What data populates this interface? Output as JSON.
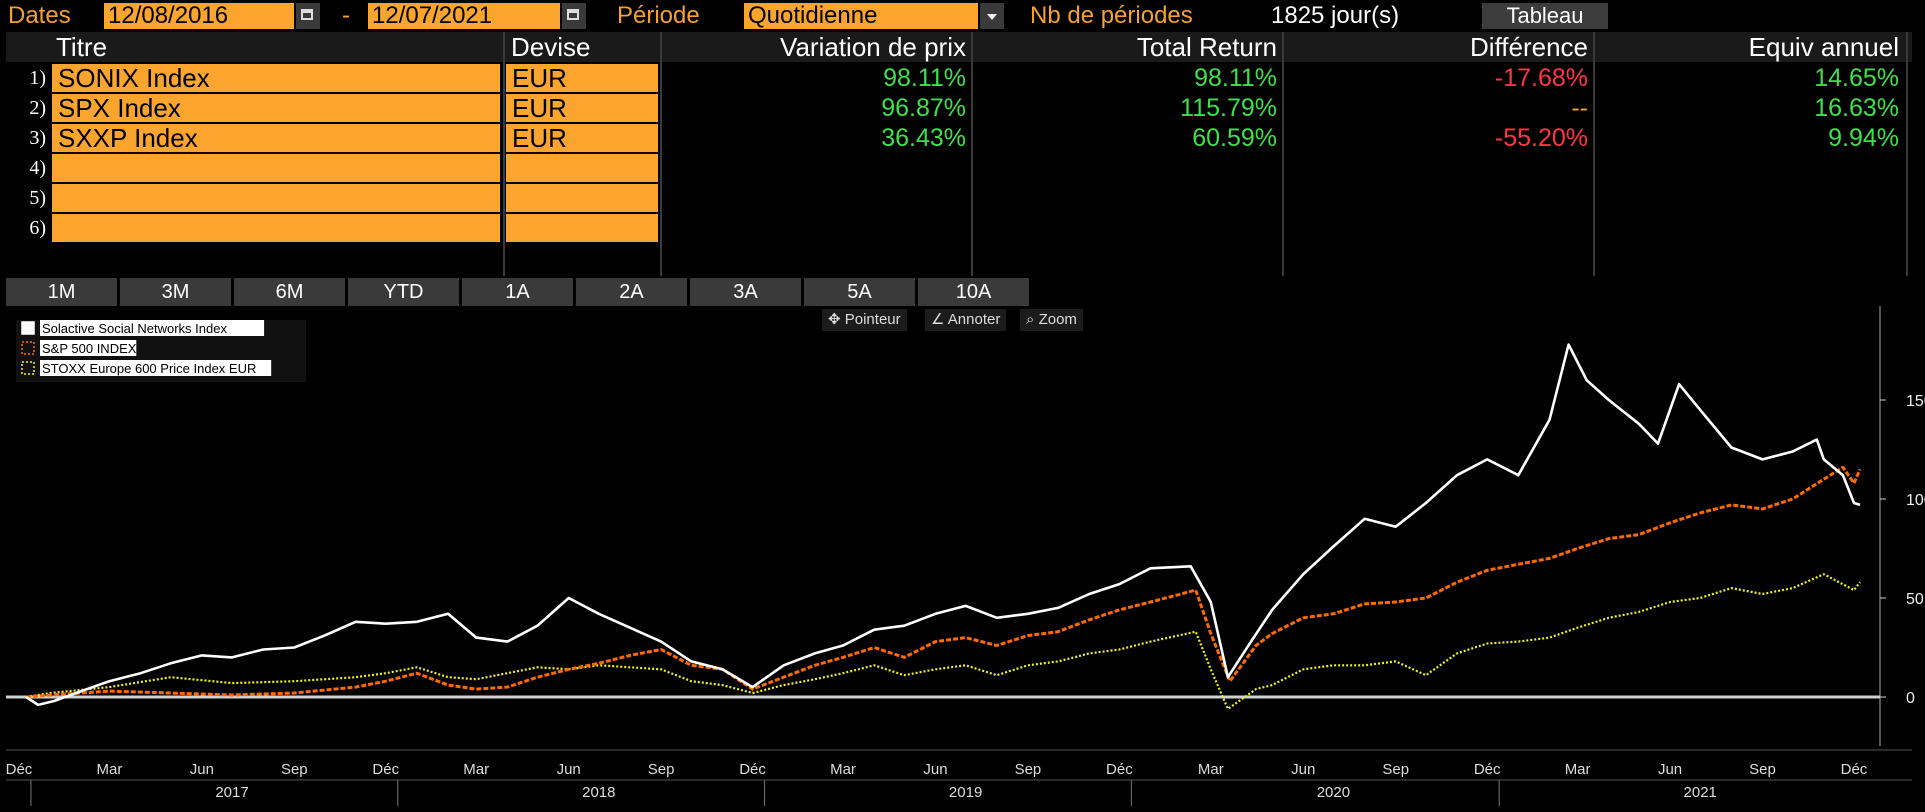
{
  "toolbar": {
    "dates_label": "Dates",
    "start_date": "12/08/2016",
    "dash": "-",
    "end_date": "12/07/2021",
    "period_label": "Période",
    "period_value": "Quotidienne",
    "nb_label": "Nb de périodes",
    "nb_value": "1825 jour(s)",
    "table_button": "Tableau"
  },
  "table": {
    "headers": {
      "titre": "Titre",
      "devise": "Devise",
      "variation": "Variation de prix",
      "total_return": "Total Return",
      "difference": "Différence",
      "equiv": "Equiv annuel"
    },
    "rows": [
      {
        "num": "1)",
        "titre": "SONIX Index",
        "devise": "EUR",
        "variation": "98.11%",
        "total_return": "98.11%",
        "difference": "-17.68%",
        "equiv": "14.65%"
      },
      {
        "num": "2)",
        "titre": "SPX Index",
        "devise": "EUR",
        "variation": "96.87%",
        "total_return": "115.79%",
        "difference": "--",
        "equiv": "16.63%"
      },
      {
        "num": "3)",
        "titre": "SXXP Index",
        "devise": "EUR",
        "variation": "36.43%",
        "total_return": "60.59%",
        "difference": "-55.20%",
        "equiv": "9.94%"
      },
      {
        "num": "4)",
        "titre": "",
        "devise": "",
        "variation": "",
        "total_return": "",
        "difference": "",
        "equiv": ""
      },
      {
        "num": "5)",
        "titre": "",
        "devise": "",
        "variation": "",
        "total_return": "",
        "difference": "",
        "equiv": ""
      },
      {
        "num": "6)",
        "titre": "",
        "devise": "",
        "variation": "",
        "total_return": "",
        "difference": "",
        "equiv": ""
      }
    ]
  },
  "period_buttons": [
    "1M",
    "3M",
    "6M",
    "YTD",
    "1A",
    "2A",
    "3A",
    "5A",
    "10A"
  ],
  "chart_tools": {
    "pointer": "Pointeur",
    "annotate": "Annoter",
    "zoom": "Zoom"
  },
  "colors": {
    "accent": "#fba52e",
    "positive": "#3ee04b",
    "negative": "#ff3540",
    "series_white": "#ffffff",
    "series_orange": "#ff6a00",
    "series_yellow": "#f2f21a"
  },
  "chart_data": {
    "type": "line",
    "title": "",
    "xlabel": "",
    "ylabel": "",
    "ylim": [
      -15,
      185
    ],
    "yticks": [
      0,
      50,
      100,
      150
    ],
    "grid": false,
    "legend_position": "top-left",
    "x_month_labels": [
      "Déc",
      "Mar",
      "Jun",
      "Sep",
      "Déc",
      "Mar",
      "Jun",
      "Sep",
      "Déc",
      "Mar",
      "Jun",
      "Sep",
      "Déc",
      "Mar",
      "Jun",
      "Sep",
      "Déc",
      "Mar",
      "Jun",
      "Sep",
      "Déc"
    ],
    "x_month_dates": [
      "2016-12-01",
      "2017-03-01",
      "2017-06-01",
      "2017-09-01",
      "2017-12-01",
      "2018-03-01",
      "2018-06-01",
      "2018-09-01",
      "2018-12-01",
      "2019-03-01",
      "2019-06-01",
      "2019-09-01",
      "2019-12-01",
      "2020-03-01",
      "2020-06-01",
      "2020-09-01",
      "2020-12-01",
      "2021-03-01",
      "2021-06-01",
      "2021-09-01",
      "2021-12-01"
    ],
    "x_year_labels": [
      "2017",
      "2018",
      "2019",
      "2020",
      "2021"
    ],
    "x_year_dates": [
      "2017-07-01",
      "2018-07-01",
      "2019-07-01",
      "2020-07-01",
      "2021-07-01"
    ],
    "x_range": [
      "2016-12-08",
      "2021-12-07"
    ],
    "series": [
      {
        "name": "Solactive Social Networks Index",
        "style": "solid",
        "points": [
          [
            "2016-12-08",
            0
          ],
          [
            "2016-12-20",
            -4
          ],
          [
            "2017-01-05",
            -2
          ],
          [
            "2017-02-01",
            3
          ],
          [
            "2017-03-01",
            8
          ],
          [
            "2017-04-01",
            12
          ],
          [
            "2017-05-01",
            17
          ],
          [
            "2017-06-01",
            21
          ],
          [
            "2017-07-01",
            20
          ],
          [
            "2017-08-01",
            24
          ],
          [
            "2017-09-01",
            25
          ],
          [
            "2017-10-01",
            31
          ],
          [
            "2017-11-01",
            38
          ],
          [
            "2017-12-01",
            37
          ],
          [
            "2018-01-01",
            38
          ],
          [
            "2018-02-01",
            42
          ],
          [
            "2018-03-01",
            30
          ],
          [
            "2018-04-01",
            28
          ],
          [
            "2018-05-01",
            36
          ],
          [
            "2018-06-01",
            50
          ],
          [
            "2018-07-01",
            42
          ],
          [
            "2018-08-01",
            35
          ],
          [
            "2018-09-01",
            28
          ],
          [
            "2018-10-01",
            18
          ],
          [
            "2018-11-01",
            14
          ],
          [
            "2018-12-01",
            5
          ],
          [
            "2019-01-01",
            16
          ],
          [
            "2019-02-01",
            22
          ],
          [
            "2019-03-01",
            26
          ],
          [
            "2019-04-01",
            34
          ],
          [
            "2019-05-01",
            36
          ],
          [
            "2019-06-01",
            42
          ],
          [
            "2019-07-01",
            46
          ],
          [
            "2019-08-01",
            40
          ],
          [
            "2019-09-01",
            42
          ],
          [
            "2019-10-01",
            45
          ],
          [
            "2019-11-01",
            52
          ],
          [
            "2019-12-01",
            57
          ],
          [
            "2020-01-01",
            65
          ],
          [
            "2020-02-10",
            66
          ],
          [
            "2020-03-01",
            48
          ],
          [
            "2020-03-18",
            10
          ],
          [
            "2020-04-10",
            28
          ],
          [
            "2020-05-01",
            44
          ],
          [
            "2020-06-01",
            62
          ],
          [
            "2020-07-01",
            76
          ],
          [
            "2020-08-01",
            90
          ],
          [
            "2020-09-01",
            86
          ],
          [
            "2020-10-01",
            98
          ],
          [
            "2020-11-01",
            112
          ],
          [
            "2020-12-01",
            120
          ],
          [
            "2021-01-01",
            112
          ],
          [
            "2021-02-01",
            140
          ],
          [
            "2021-02-20",
            178
          ],
          [
            "2021-03-10",
            160
          ],
          [
            "2021-04-01",
            150
          ],
          [
            "2021-05-01",
            138
          ],
          [
            "2021-05-20",
            128
          ],
          [
            "2021-06-10",
            158
          ],
          [
            "2021-07-01",
            145
          ],
          [
            "2021-08-01",
            126
          ],
          [
            "2021-09-01",
            120
          ],
          [
            "2021-10-01",
            124
          ],
          [
            "2021-10-25",
            130
          ],
          [
            "2021-11-01",
            120
          ],
          [
            "2021-11-20",
            112
          ],
          [
            "2021-12-01",
            98
          ],
          [
            "2021-12-07",
            97
          ]
        ]
      },
      {
        "name": "S&P 500 INDEX",
        "style": "dashed",
        "points": [
          [
            "2016-12-08",
            0
          ],
          [
            "2017-01-01",
            1
          ],
          [
            "2017-03-01",
            3
          ],
          [
            "2017-05-01",
            2
          ],
          [
            "2017-07-01",
            1
          ],
          [
            "2017-09-01",
            2
          ],
          [
            "2017-11-01",
            5
          ],
          [
            "2017-12-01",
            8
          ],
          [
            "2018-01-01",
            12
          ],
          [
            "2018-02-01",
            6
          ],
          [
            "2018-03-01",
            4
          ],
          [
            "2018-04-01",
            5
          ],
          [
            "2018-05-01",
            10
          ],
          [
            "2018-06-01",
            14
          ],
          [
            "2018-07-01",
            17
          ],
          [
            "2018-08-01",
            21
          ],
          [
            "2018-09-01",
            24
          ],
          [
            "2018-10-01",
            16
          ],
          [
            "2018-11-01",
            14
          ],
          [
            "2018-12-01",
            4
          ],
          [
            "2019-01-01",
            10
          ],
          [
            "2019-02-01",
            16
          ],
          [
            "2019-03-01",
            20
          ],
          [
            "2019-04-01",
            25
          ],
          [
            "2019-05-01",
            20
          ],
          [
            "2019-06-01",
            28
          ],
          [
            "2019-07-01",
            30
          ],
          [
            "2019-08-01",
            26
          ],
          [
            "2019-09-01",
            31
          ],
          [
            "2019-10-01",
            33
          ],
          [
            "2019-11-01",
            39
          ],
          [
            "2019-12-01",
            44
          ],
          [
            "2020-01-01",
            48
          ],
          [
            "2020-02-15",
            54
          ],
          [
            "2020-03-01",
            32
          ],
          [
            "2020-03-20",
            8
          ],
          [
            "2020-04-15",
            26
          ],
          [
            "2020-05-01",
            32
          ],
          [
            "2020-06-01",
            40
          ],
          [
            "2020-07-01",
            42
          ],
          [
            "2020-08-01",
            47
          ],
          [
            "2020-09-01",
            48
          ],
          [
            "2020-10-01",
            50
          ],
          [
            "2020-11-01",
            58
          ],
          [
            "2020-12-01",
            64
          ],
          [
            "2021-01-01",
            67
          ],
          [
            "2021-02-01",
            70
          ],
          [
            "2021-03-01",
            75
          ],
          [
            "2021-04-01",
            80
          ],
          [
            "2021-05-01",
            82
          ],
          [
            "2021-06-01",
            88
          ],
          [
            "2021-07-01",
            93
          ],
          [
            "2021-08-01",
            97
          ],
          [
            "2021-09-01",
            95
          ],
          [
            "2021-10-01",
            100
          ],
          [
            "2021-11-01",
            110
          ],
          [
            "2021-11-20",
            116
          ],
          [
            "2021-12-01",
            108
          ],
          [
            "2021-12-07",
            115
          ]
        ]
      },
      {
        "name": "STOXX Europe 600 Price Index EUR",
        "style": "dotted",
        "points": [
          [
            "2016-12-08",
            0
          ],
          [
            "2017-01-01",
            2
          ],
          [
            "2017-03-01",
            5
          ],
          [
            "2017-05-01",
            10
          ],
          [
            "2017-07-01",
            7
          ],
          [
            "2017-09-01",
            8
          ],
          [
            "2017-11-01",
            10
          ],
          [
            "2017-12-01",
            12
          ],
          [
            "2018-01-01",
            15
          ],
          [
            "2018-02-01",
            10
          ],
          [
            "2018-03-01",
            9
          ],
          [
            "2018-04-01",
            12
          ],
          [
            "2018-05-01",
            15
          ],
          [
            "2018-06-01",
            14
          ],
          [
            "2018-07-01",
            16
          ],
          [
            "2018-08-01",
            15
          ],
          [
            "2018-09-01",
            14
          ],
          [
            "2018-10-01",
            8
          ],
          [
            "2018-11-01",
            6
          ],
          [
            "2018-12-01",
            2
          ],
          [
            "2019-01-01",
            6
          ],
          [
            "2019-02-01",
            9
          ],
          [
            "2019-03-01",
            12
          ],
          [
            "2019-04-01",
            16
          ],
          [
            "2019-05-01",
            11
          ],
          [
            "2019-06-01",
            14
          ],
          [
            "2019-07-01",
            16
          ],
          [
            "2019-08-01",
            11
          ],
          [
            "2019-09-01",
            16
          ],
          [
            "2019-10-01",
            18
          ],
          [
            "2019-11-01",
            22
          ],
          [
            "2019-12-01",
            24
          ],
          [
            "2020-01-01",
            28
          ],
          [
            "2020-02-15",
            33
          ],
          [
            "2020-03-01",
            14
          ],
          [
            "2020-03-18",
            -6
          ],
          [
            "2020-04-15",
            4
          ],
          [
            "2020-05-01",
            6
          ],
          [
            "2020-06-01",
            14
          ],
          [
            "2020-07-01",
            16
          ],
          [
            "2020-08-01",
            16
          ],
          [
            "2020-09-01",
            18
          ],
          [
            "2020-10-01",
            11
          ],
          [
            "2020-11-01",
            22
          ],
          [
            "2020-12-01",
            27
          ],
          [
            "2021-01-01",
            28
          ],
          [
            "2021-02-01",
            30
          ],
          [
            "2021-03-01",
            35
          ],
          [
            "2021-04-01",
            40
          ],
          [
            "2021-05-01",
            43
          ],
          [
            "2021-06-01",
            48
          ],
          [
            "2021-07-01",
            50
          ],
          [
            "2021-08-01",
            55
          ],
          [
            "2021-09-01",
            52
          ],
          [
            "2021-10-01",
            55
          ],
          [
            "2021-11-01",
            62
          ],
          [
            "2021-12-01",
            54
          ],
          [
            "2021-12-07",
            58
          ]
        ]
      }
    ]
  }
}
